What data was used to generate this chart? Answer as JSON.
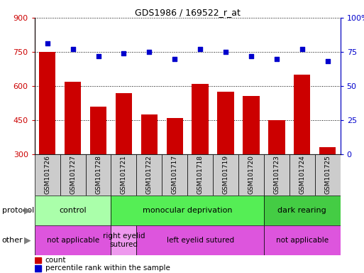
{
  "title": "GDS1986 / 169522_r_at",
  "samples": [
    "GSM101726",
    "GSM101727",
    "GSM101728",
    "GSM101721",
    "GSM101722",
    "GSM101717",
    "GSM101718",
    "GSM101719",
    "GSM101720",
    "GSM101723",
    "GSM101724",
    "GSM101725"
  ],
  "counts": [
    750,
    620,
    510,
    570,
    475,
    460,
    610,
    575,
    555,
    450,
    650,
    330
  ],
  "percentiles": [
    81,
    77,
    72,
    74,
    75,
    70,
    77,
    75,
    72,
    70,
    77,
    68
  ],
  "ylim_left": [
    300,
    900
  ],
  "ylim_right": [
    0,
    100
  ],
  "yticks_left": [
    300,
    450,
    600,
    750,
    900
  ],
  "yticks_right": [
    0,
    25,
    50,
    75,
    100
  ],
  "bar_color": "#cc0000",
  "dot_color": "#0000cc",
  "grid_color": "#000000",
  "protocol_groups": [
    {
      "label": "control",
      "start": 0,
      "end": 3,
      "color": "#aaffaa"
    },
    {
      "label": "monocular deprivation",
      "start": 3,
      "end": 9,
      "color": "#55ee55"
    },
    {
      "label": "dark rearing",
      "start": 9,
      "end": 12,
      "color": "#44cc44"
    }
  ],
  "other_groups": [
    {
      "label": "not applicable",
      "start": 0,
      "end": 3,
      "color": "#dd55dd"
    },
    {
      "label": "right eyelid\nsutured",
      "start": 3,
      "end": 4,
      "color": "#ee99ee"
    },
    {
      "label": "left eyelid sutured",
      "start": 4,
      "end": 9,
      "color": "#dd55dd"
    },
    {
      "label": "not applicable",
      "start": 9,
      "end": 12,
      "color": "#dd55dd"
    }
  ],
  "protocol_label": "protocol",
  "other_label": "other",
  "legend_count_label": "count",
  "legend_pct_label": "percentile rank within the sample",
  "xtick_bg_color": "#cccccc",
  "xtick_fontsize": 6.5,
  "label_fontsize": 8,
  "title_fontsize": 9
}
